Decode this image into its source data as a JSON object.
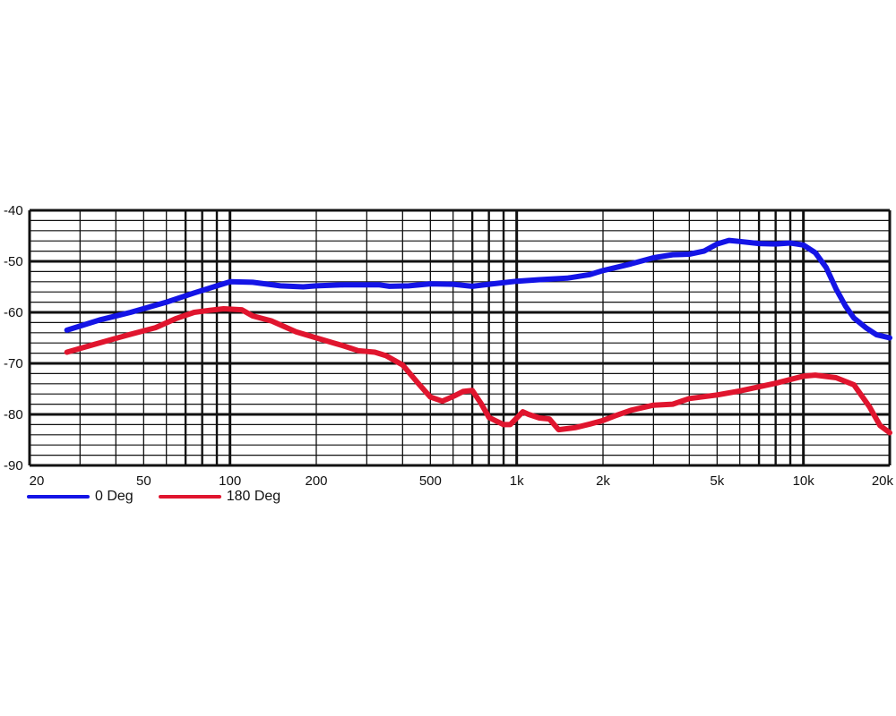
{
  "chart_data": {
    "type": "line",
    "title": "",
    "xlabel": "",
    "ylabel": "",
    "x_scale": "log",
    "xlim": [
      20,
      20000
    ],
    "ylim": [
      -90,
      -40
    ],
    "grid": true,
    "legend_position": "bottom-left",
    "x_ticks": [
      {
        "value": 20,
        "label": "20"
      },
      {
        "value": 50,
        "label": "50"
      },
      {
        "value": 100,
        "label": "100"
      },
      {
        "value": 200,
        "label": "200"
      },
      {
        "value": 500,
        "label": "500"
      },
      {
        "value": 1000,
        "label": "1k"
      },
      {
        "value": 2000,
        "label": "2k"
      },
      {
        "value": 5000,
        "label": "5k"
      },
      {
        "value": 10000,
        "label": "10k"
      },
      {
        "value": 20000,
        "label": "20k"
      }
    ],
    "y_ticks": [
      {
        "value": -40,
        "label": "-40"
      },
      {
        "value": -50,
        "label": "-50"
      },
      {
        "value": -60,
        "label": "-60"
      },
      {
        "value": -70,
        "label": "-70"
      },
      {
        "value": -80,
        "label": "-80"
      },
      {
        "value": -90,
        "label": "-90"
      }
    ],
    "series": [
      {
        "name": "0 Deg",
        "color": "#1414e6",
        "points": [
          [
            27,
            -63.5
          ],
          [
            35,
            -61.5
          ],
          [
            45,
            -60
          ],
          [
            60,
            -58
          ],
          [
            75,
            -56.2
          ],
          [
            90,
            -54.8
          ],
          [
            100,
            -54
          ],
          [
            120,
            -54.1
          ],
          [
            150,
            -54.8
          ],
          [
            180,
            -55
          ],
          [
            200,
            -54.8
          ],
          [
            250,
            -54.6
          ],
          [
            330,
            -54.6
          ],
          [
            360,
            -54.9
          ],
          [
            420,
            -54.8
          ],
          [
            500,
            -54.4
          ],
          [
            600,
            -54.5
          ],
          [
            700,
            -54.9
          ],
          [
            800,
            -54.5
          ],
          [
            1000,
            -53.9
          ],
          [
            1200,
            -53.6
          ],
          [
            1500,
            -53.3
          ],
          [
            1800,
            -52.6
          ],
          [
            2000,
            -51.8
          ],
          [
            2500,
            -50.5
          ],
          [
            3000,
            -49.3
          ],
          [
            3500,
            -48.7
          ],
          [
            4000,
            -48.6
          ],
          [
            4500,
            -48
          ],
          [
            5000,
            -46.6
          ],
          [
            5500,
            -45.9
          ],
          [
            6000,
            -46.1
          ],
          [
            7000,
            -46.5
          ],
          [
            8000,
            -46.6
          ],
          [
            9000,
            -46.4
          ],
          [
            10000,
            -46.8
          ],
          [
            11000,
            -48.3
          ],
          [
            12000,
            -51.2
          ],
          [
            13000,
            -55.4
          ],
          [
            14000,
            -58.7
          ],
          [
            15000,
            -61.1
          ],
          [
            16500,
            -63
          ],
          [
            18000,
            -64.4
          ],
          [
            20000,
            -65
          ]
        ]
      },
      {
        "name": "180 Deg",
        "color": "#e0152e",
        "points": [
          [
            27,
            -67.8
          ],
          [
            35,
            -66
          ],
          [
            45,
            -64.3
          ],
          [
            55,
            -63
          ],
          [
            65,
            -61.2
          ],
          [
            75,
            -60
          ],
          [
            85,
            -59.6
          ],
          [
            95,
            -59.3
          ],
          [
            110,
            -59.5
          ],
          [
            120,
            -60.7
          ],
          [
            140,
            -61.7
          ],
          [
            170,
            -63.8
          ],
          [
            200,
            -65
          ],
          [
            230,
            -66
          ],
          [
            250,
            -66.6
          ],
          [
            280,
            -67.5
          ],
          [
            320,
            -67.8
          ],
          [
            350,
            -68.5
          ],
          [
            400,
            -70.3
          ],
          [
            450,
            -73.7
          ],
          [
            500,
            -76.6
          ],
          [
            550,
            -77.4
          ],
          [
            600,
            -76.5
          ],
          [
            650,
            -75.5
          ],
          [
            700,
            -75.3
          ],
          [
            750,
            -77.8
          ],
          [
            800,
            -80.6
          ],
          [
            900,
            -82
          ],
          [
            950,
            -82
          ],
          [
            1050,
            -79.5
          ],
          [
            1100,
            -80
          ],
          [
            1200,
            -80.7
          ],
          [
            1300,
            -80.9
          ],
          [
            1400,
            -83
          ],
          [
            1600,
            -82.6
          ],
          [
            1800,
            -81.9
          ],
          [
            2000,
            -81.2
          ],
          [
            2200,
            -80.3
          ],
          [
            2500,
            -79.2
          ],
          [
            3000,
            -78.2
          ],
          [
            3500,
            -78
          ],
          [
            4000,
            -76.9
          ],
          [
            5000,
            -76.2
          ],
          [
            6000,
            -75.4
          ],
          [
            7000,
            -74.6
          ],
          [
            8000,
            -73.9
          ],
          [
            10000,
            -72.5
          ],
          [
            11000,
            -72.3
          ],
          [
            13000,
            -72.8
          ],
          [
            15000,
            -74.2
          ],
          [
            17000,
            -78.5
          ],
          [
            18500,
            -82.2
          ],
          [
            20000,
            -83.6
          ]
        ]
      }
    ]
  }
}
